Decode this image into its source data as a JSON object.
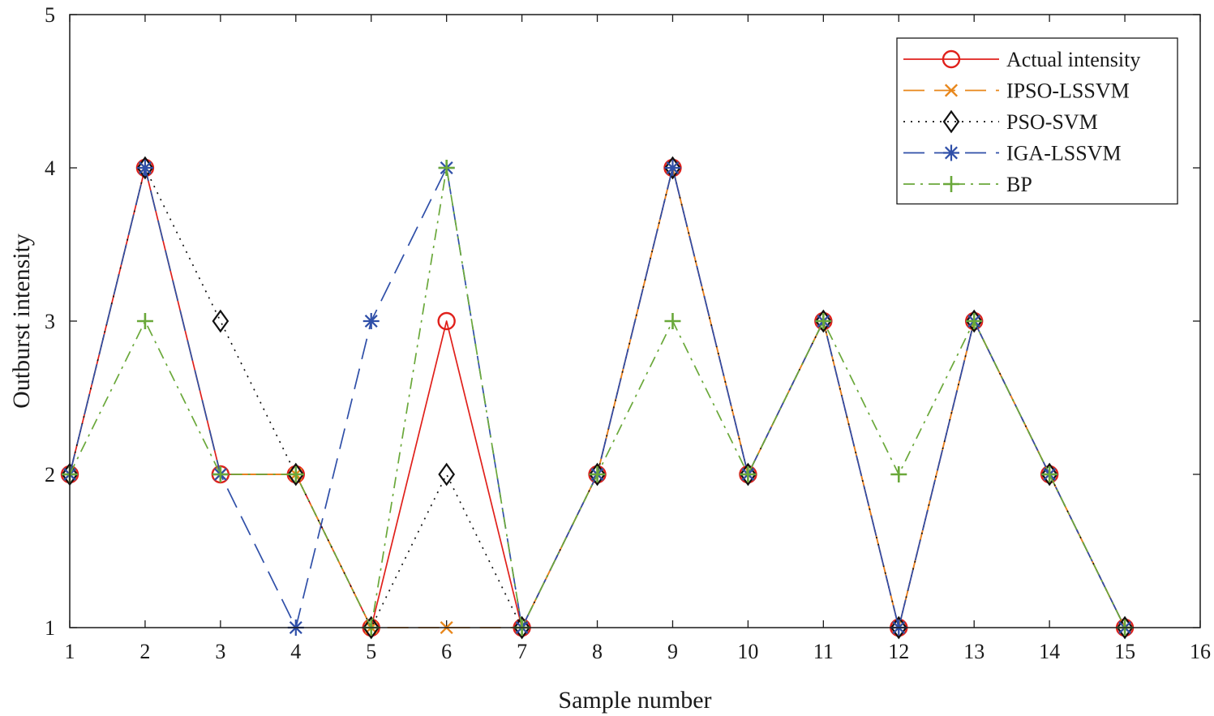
{
  "chart_data": {
    "type": "line",
    "xlabel": "Sample number",
    "ylabel": "Outburst intensity",
    "xlim": [
      1,
      16
    ],
    "ylim": [
      1,
      5
    ],
    "xticks": [
      1,
      2,
      3,
      4,
      5,
      6,
      7,
      8,
      9,
      10,
      11,
      12,
      13,
      14,
      15,
      16
    ],
    "yticks": [
      1,
      2,
      3,
      4,
      5
    ],
    "grid": false,
    "legend_position": "top-right",
    "x": [
      1,
      2,
      3,
      4,
      5,
      6,
      7,
      8,
      9,
      10,
      11,
      12,
      13,
      14,
      15
    ],
    "series": [
      {
        "name": "Actual intensity",
        "color": "#e0201b",
        "marker": "circle",
        "dash": "solid",
        "values": [
          2,
          4,
          2,
          2,
          1,
          3,
          1,
          2,
          4,
          2,
          3,
          1,
          3,
          2,
          1
        ]
      },
      {
        "name": "IPSO-LSSVM",
        "color": "#e8861a",
        "marker": "x",
        "dash": "dashed",
        "values": [
          2,
          4,
          2,
          2,
          1,
          1,
          1,
          2,
          4,
          2,
          3,
          1,
          3,
          2,
          1
        ]
      },
      {
        "name": "PSO-SVM",
        "color": "#111111",
        "marker": "diamond",
        "dash": "dotted",
        "values": [
          2,
          4,
          3,
          2,
          1,
          2,
          1,
          2,
          4,
          2,
          3,
          1,
          3,
          2,
          1
        ]
      },
      {
        "name": "IGA-LSSVM",
        "color": "#2f4fa8",
        "marker": "asterisk",
        "dash": "dashed",
        "values": [
          2,
          4,
          2,
          1,
          3,
          4,
          1,
          2,
          4,
          2,
          3,
          1,
          3,
          2,
          1
        ]
      },
      {
        "name": "BP",
        "color": "#6aa83a",
        "marker": "plus",
        "dash": "dashdot",
        "values": [
          2,
          3,
          2,
          2,
          1,
          4,
          1,
          2,
          3,
          2,
          3,
          2,
          3,
          2,
          1
        ]
      }
    ]
  }
}
